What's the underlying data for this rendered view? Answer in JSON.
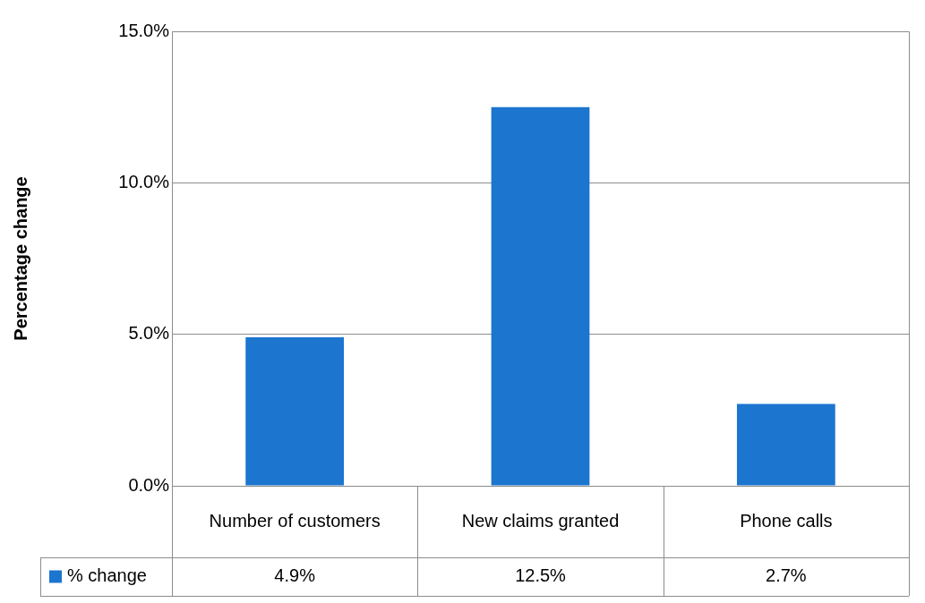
{
  "chart_data": {
    "type": "bar",
    "ylabel": "Percentage change",
    "categories": [
      "Number of customers",
      "New claims granted",
      "Phone calls"
    ],
    "series": [
      {
        "name": "% change",
        "color": "#1c75cf",
        "values": [
          4.9,
          12.5,
          2.7
        ],
        "value_labels": [
          "4.9%",
          "12.5%",
          "2.7%"
        ]
      }
    ],
    "ylim": [
      0,
      15
    ],
    "yticks": [
      {
        "value": 0,
        "label": "0.0%"
      },
      {
        "value": 5,
        "label": "5.0%"
      },
      {
        "value": 10,
        "label": "10.0%"
      },
      {
        "value": 15,
        "label": "15.0%"
      }
    ],
    "grid": "y",
    "legend": "bottom"
  }
}
